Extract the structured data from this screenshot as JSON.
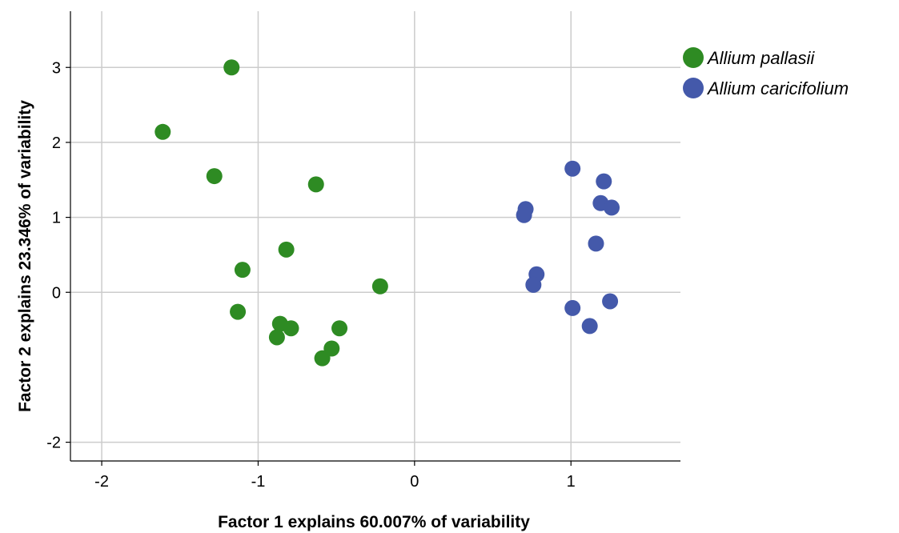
{
  "chart_data": {
    "type": "scatter",
    "xlabel": "Factor 1 explains 60.007% of variability",
    "ylabel": "Factor 2 explains 23.346% of variability",
    "xlim": [
      -2.2,
      1.7
    ],
    "ylim": [
      -2.25,
      3.75
    ],
    "xticks": [
      -2,
      -1,
      0,
      1
    ],
    "yticks": [
      -2,
      0,
      1,
      2,
      3
    ],
    "grid": true,
    "legend_position": "top-right",
    "series": [
      {
        "name": "Allium pallasii",
        "color": "#2e8b23",
        "points": [
          {
            "x": -1.17,
            "y": 3.0
          },
          {
            "x": -1.61,
            "y": 2.14
          },
          {
            "x": -1.28,
            "y": 1.55
          },
          {
            "x": -0.63,
            "y": 1.44
          },
          {
            "x": -0.82,
            "y": 0.57
          },
          {
            "x": -1.1,
            "y": 0.3
          },
          {
            "x": -0.22,
            "y": 0.08
          },
          {
            "x": -1.13,
            "y": -0.26
          },
          {
            "x": -0.86,
            "y": -0.42
          },
          {
            "x": -0.79,
            "y": -0.48
          },
          {
            "x": -0.48,
            "y": -0.48
          },
          {
            "x": -0.88,
            "y": -0.6
          },
          {
            "x": -0.53,
            "y": -0.75
          },
          {
            "x": -0.59,
            "y": -0.88
          }
        ]
      },
      {
        "name": "Allium caricifolium",
        "color": "#4459aa",
        "points": [
          {
            "x": 1.01,
            "y": 1.65
          },
          {
            "x": 1.21,
            "y": 1.48
          },
          {
            "x": 1.19,
            "y": 1.19
          },
          {
            "x": 1.26,
            "y": 1.13
          },
          {
            "x": 0.71,
            "y": 1.11
          },
          {
            "x": 0.7,
            "y": 1.03
          },
          {
            "x": 1.16,
            "y": 0.65
          },
          {
            "x": 0.78,
            "y": 0.24
          },
          {
            "x": 0.76,
            "y": 0.1
          },
          {
            "x": 1.25,
            "y": -0.12
          },
          {
            "x": 1.01,
            "y": -0.21
          },
          {
            "x": 1.12,
            "y": -0.45
          }
        ]
      }
    ]
  }
}
